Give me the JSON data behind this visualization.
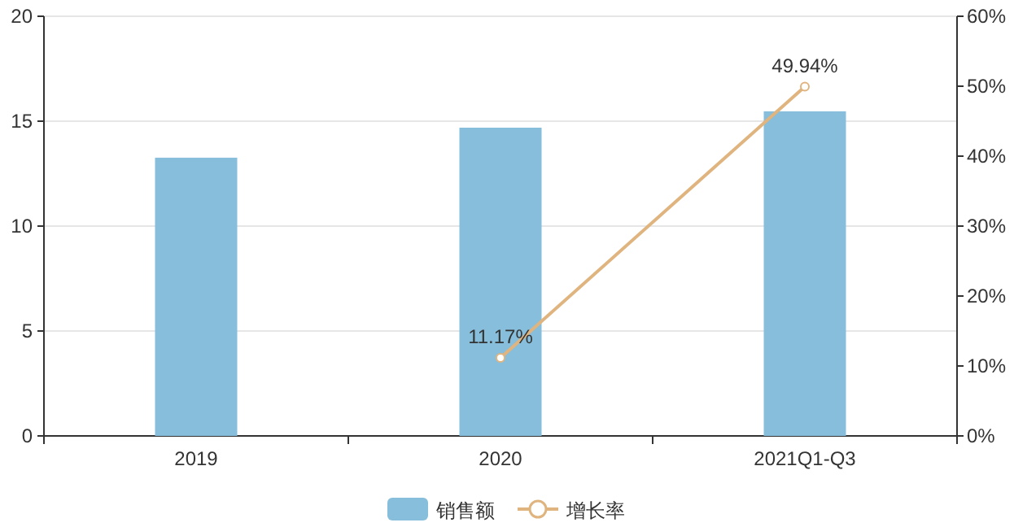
{
  "chart_data": {
    "type": "bar",
    "categories": [
      "2019",
      "2020",
      "2021Q1-Q3"
    ],
    "series": [
      {
        "name": "销售额",
        "color": "#86bedb",
        "values": [
          13.26,
          14.69,
          15.47
        ]
      },
      {
        "name": "增长率",
        "type": "line",
        "axis": "y2",
        "color": "#e0b47f",
        "marker": "circle",
        "values": [
          null,
          11.17,
          49.94
        ],
        "value_labels": [
          null,
          "11.17%",
          "49.94%"
        ]
      }
    ],
    "ylim": [
      0,
      20
    ],
    "yticks": [
      0,
      5,
      10,
      15,
      20
    ],
    "y2lim": [
      0,
      60
    ],
    "y2ticks": [
      {
        "value": 0,
        "label": "0%"
      },
      {
        "value": 10,
        "label": "10%"
      },
      {
        "value": 20,
        "label": "20%"
      },
      {
        "value": 30,
        "label": "30%"
      },
      {
        "value": 40,
        "label": "40%"
      },
      {
        "value": 50,
        "label": "50%"
      },
      {
        "value": 60,
        "label": "60%"
      }
    ],
    "grid": "y",
    "legend": "bottom"
  }
}
